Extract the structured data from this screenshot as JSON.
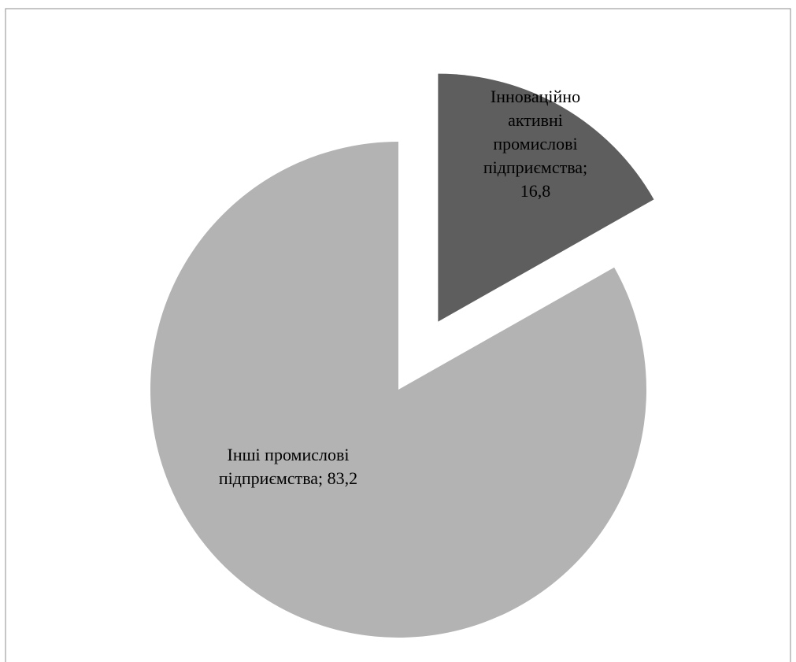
{
  "chart_data": {
    "type": "pie",
    "slices": [
      {
        "name": "Інноваційно активні промислові підприємства",
        "value": 16.8,
        "label_lines": [
          "Інноваційно",
          "активні",
          "промислові",
          "підприємства;",
          "16,8"
        ],
        "color": "#5e5e5e",
        "exploded": true
      },
      {
        "name": "Інші промислові підприємства",
        "value": 83.2,
        "label_lines": [
          "Інші промислові",
          "підприємства; 83,2"
        ],
        "color": "#b3b3b3",
        "exploded": false
      }
    ],
    "start_angle": "12 o'clock",
    "direction": "clockwise",
    "data_labels": "inside"
  }
}
